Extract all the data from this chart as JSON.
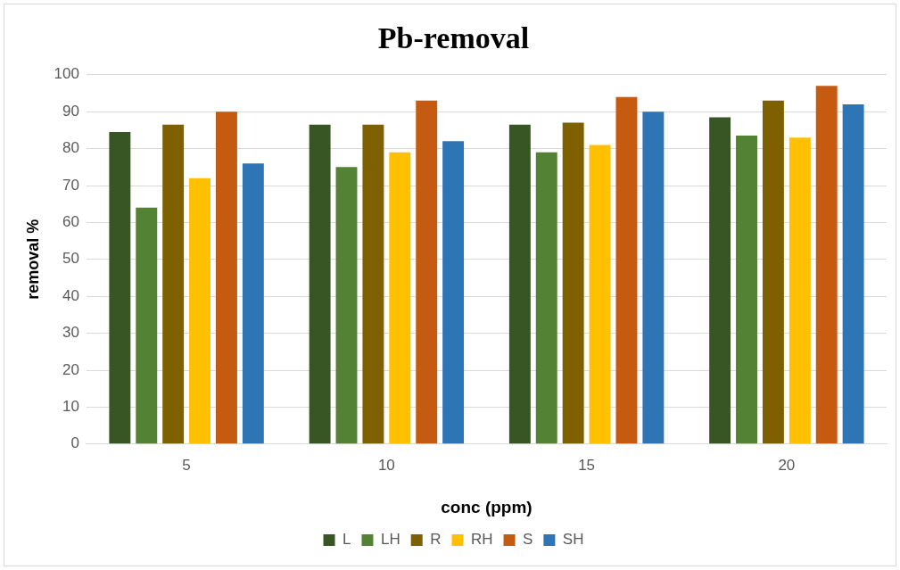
{
  "chart_data": {
    "type": "bar",
    "title": "Pb-removal",
    "xlabel": "conc (ppm)",
    "ylabel": "removal %",
    "categories": [
      "5",
      "10",
      "15",
      "20"
    ],
    "series": [
      {
        "name": "L",
        "color": "#375623",
        "values": [
          84.5,
          86.5,
          86.5,
          88.5
        ]
      },
      {
        "name": "LH",
        "color": "#548235",
        "values": [
          64,
          75,
          79,
          83.5
        ]
      },
      {
        "name": "R",
        "color": "#7f6000",
        "values": [
          86.5,
          86.5,
          87,
          93
        ]
      },
      {
        "name": "RH",
        "color": "#ffc000",
        "values": [
          72,
          79,
          81,
          83
        ]
      },
      {
        "name": "S",
        "color": "#c55a11",
        "values": [
          90,
          93,
          94,
          97
        ]
      },
      {
        "name": "SH",
        "color": "#2e75b6",
        "values": [
          76,
          82,
          90,
          92
        ]
      }
    ],
    "ylim": [
      0,
      100
    ],
    "yticks": [
      0,
      10,
      20,
      30,
      40,
      50,
      60,
      70,
      80,
      90,
      100
    ],
    "grid": "y",
    "legend": "bottom"
  }
}
